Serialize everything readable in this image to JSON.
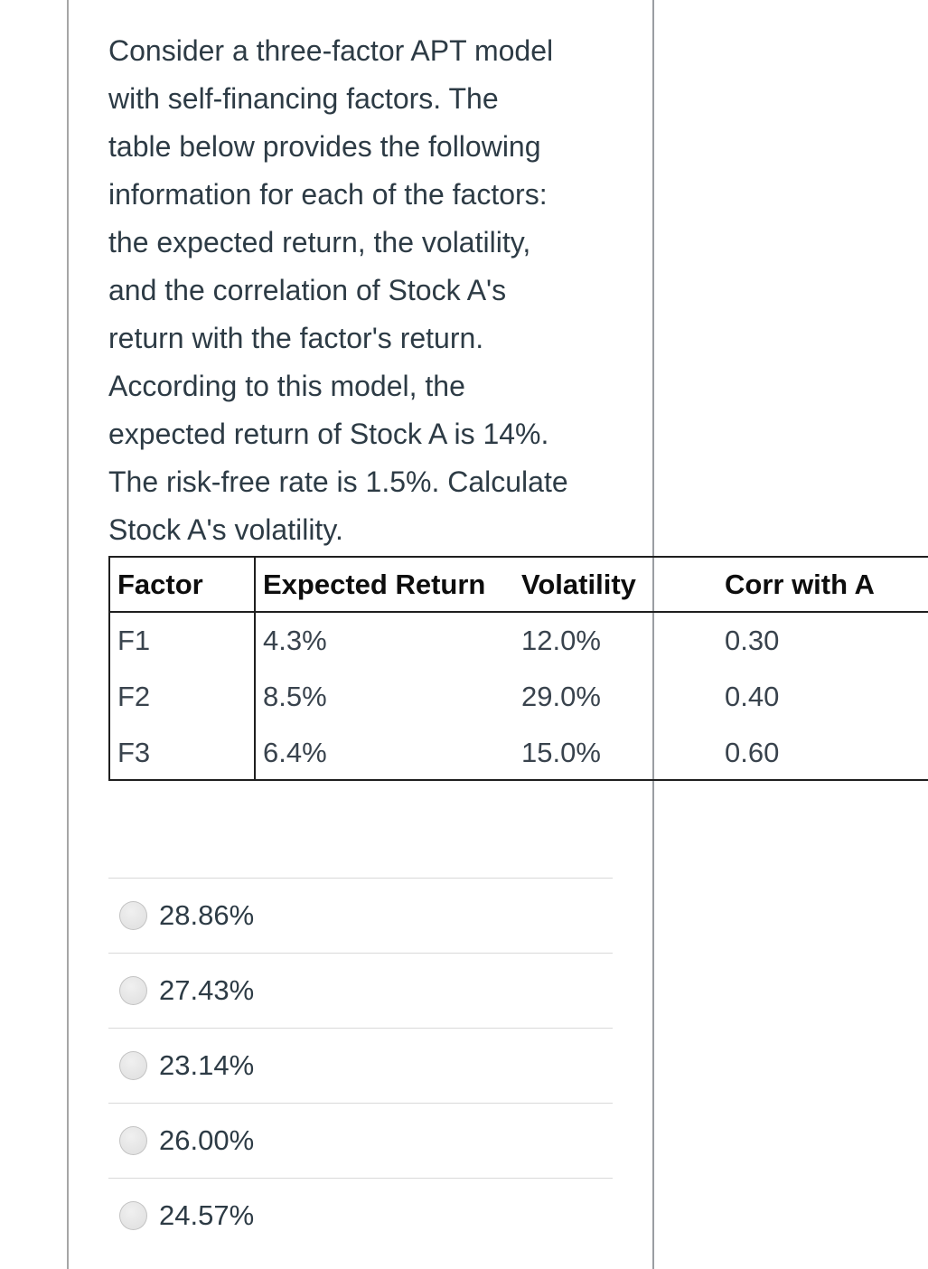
{
  "question": {
    "full_text": "Consider a three-factor APT model with self-financing factors. The table below provides the following information for each of the factors: the expected return, the volatility, and the correlation of Stock A's return with the factor's return. According to this model, the expected return of Stock A is 14%. The risk-free rate is 1.5%. Calculate Stock A's volatility.",
    "lines": [
      "Consider a three-factor APT model",
      "with self-financing factors. The",
      "table below provides the following",
      "information for each of the factors:",
      "the expected return, the volatility,",
      "and the correlation of Stock A's",
      "return with the factor's return.",
      "According to this model, the",
      "expected return of Stock A is 14%.",
      "The risk-free rate is 1.5%. Calculate",
      "Stock A's volatility."
    ]
  },
  "table": {
    "headers": [
      "Factor",
      "Expected Return",
      "Volatility",
      "Corr with A"
    ],
    "rows": [
      {
        "factor": "F1",
        "expected_return": "4.3%",
        "volatility": "12.0%",
        "corr_with_a": "0.30"
      },
      {
        "factor": "F2",
        "expected_return": "8.5%",
        "volatility": "29.0%",
        "corr_with_a": "0.40"
      },
      {
        "factor": "F3",
        "expected_return": "6.4%",
        "volatility": "15.0%",
        "corr_with_a": "0.60"
      }
    ]
  },
  "options": [
    {
      "label": "28.86%",
      "selected": false
    },
    {
      "label": "27.43%",
      "selected": false
    },
    {
      "label": "23.14%",
      "selected": false
    },
    {
      "label": "26.00%",
      "selected": false
    },
    {
      "label": "24.57%",
      "selected": false
    }
  ],
  "colors": {
    "background": "#ffffff",
    "text": "#2d3b45",
    "table_border": "#1f1f1f",
    "table_header_text": "#0d0d0d",
    "table_value_text": "#39434d",
    "pane_divider": "#9a9ea2",
    "left_border": "#a6a6a6",
    "option_divider": "#d9d9d9",
    "radio_fill": "#e6e6e6",
    "radio_border": "#c3c3c3"
  }
}
